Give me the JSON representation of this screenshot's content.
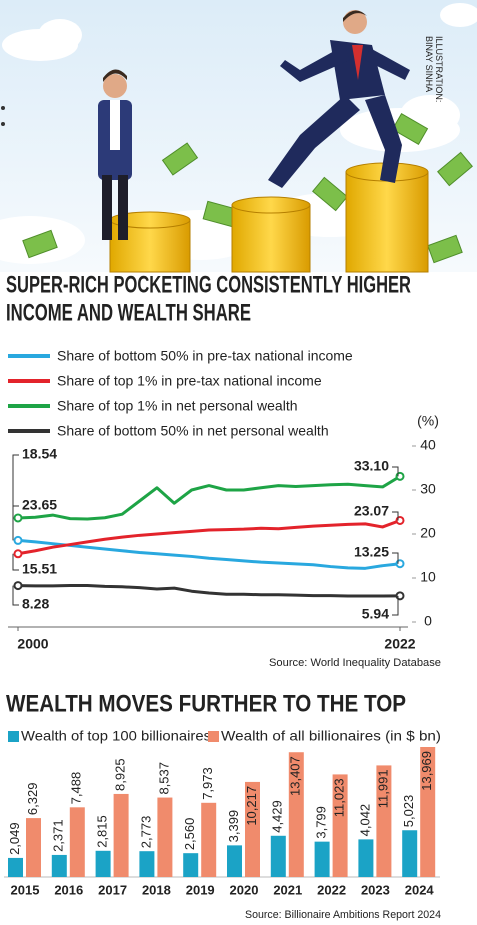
{
  "header": {
    "credit": [
      "ILLUSTRATION:",
      "BINAY SINHA"
    ]
  },
  "chart_data": [
    {
      "type": "line",
      "title": [
        "SUPER-RICH POCKETING CONSISTENTLY HIGHER",
        "INCOME AND WEALTH SHARE"
      ],
      "y_label": "(%)",
      "x": [
        2000,
        2001,
        2002,
        2003,
        2004,
        2005,
        2006,
        2007,
        2008,
        2009,
        2010,
        2011,
        2012,
        2013,
        2014,
        2015,
        2016,
        2017,
        2018,
        2019,
        2020,
        2021,
        2022
      ],
      "xlim": [
        2000,
        2022
      ],
      "xticks": [
        2000,
        2022
      ],
      "ylim": [
        0,
        40
      ],
      "yticks": [
        0,
        10,
        20,
        30,
        40
      ],
      "series": [
        {
          "name": "Share of bottom 50% in pre-tax national income",
          "color": "#29a8df",
          "values": [
            18.54,
            18.2,
            17.8,
            17.4,
            17.0,
            16.6,
            16.2,
            15.8,
            15.5,
            15.2,
            14.9,
            14.5,
            14.2,
            13.9,
            13.6,
            13.4,
            13.2,
            13.0,
            12.6,
            12.3,
            12.2,
            12.8,
            13.25
          ],
          "value_labels": [
            "18.54",
            null,
            null,
            null,
            null,
            null,
            null,
            null,
            null,
            null,
            null,
            null,
            null,
            null,
            null,
            null,
            null,
            null,
            null,
            null,
            null,
            null,
            "13.25"
          ]
        },
        {
          "name": "Share of top 1% in pre-tax national income",
          "color": "#e3232b",
          "values": [
            15.51,
            16.2,
            17.0,
            17.6,
            18.2,
            18.8,
            19.3,
            19.7,
            20.0,
            20.3,
            20.6,
            20.9,
            21.0,
            21.1,
            21.3,
            21.2,
            21.5,
            21.8,
            22.0,
            22.2,
            22.3,
            21.6,
            23.07
          ],
          "value_labels": [
            "15.51",
            null,
            null,
            null,
            null,
            null,
            null,
            null,
            null,
            null,
            null,
            null,
            null,
            null,
            null,
            null,
            null,
            null,
            null,
            null,
            null,
            null,
            "23.07"
          ]
        },
        {
          "name": "Share of top 1% in net personal wealth",
          "color": "#1ea446",
          "values": [
            23.65,
            23.8,
            24.3,
            23.5,
            23.4,
            23.7,
            24.5,
            27.5,
            30.5,
            27.0,
            30.0,
            31.0,
            30.0,
            30.0,
            30.5,
            31.0,
            30.8,
            31.0,
            31.2,
            31.3,
            31.0,
            30.7,
            33.1
          ],
          "value_labels": [
            "23.65",
            null,
            null,
            null,
            null,
            null,
            null,
            null,
            null,
            null,
            null,
            null,
            null,
            null,
            null,
            null,
            null,
            null,
            null,
            null,
            null,
            null,
            "33.10"
          ]
        },
        {
          "name": "Share of bottom 50% in net personal wealth",
          "color": "#333333",
          "values": [
            8.28,
            8.2,
            8.2,
            8.3,
            8.3,
            8.1,
            8.0,
            7.8,
            7.5,
            7.7,
            7.0,
            6.6,
            6.3,
            6.3,
            6.2,
            6.2,
            6.1,
            6.0,
            6.0,
            5.9,
            5.9,
            5.9,
            5.94
          ],
          "value_labels": [
            "8.28",
            null,
            null,
            null,
            null,
            null,
            null,
            null,
            null,
            null,
            null,
            null,
            null,
            null,
            null,
            null,
            null,
            null,
            null,
            null,
            null,
            null,
            "5.94"
          ]
        }
      ],
      "source": "Source: World Inequality Database"
    },
    {
      "type": "bar",
      "title": [
        "WEALTH MOVES FURTHER TO THE TOP"
      ],
      "categories": [
        "2015",
        "2016",
        "2017",
        "2018",
        "2019",
        "2020",
        "2021",
        "2022",
        "2023",
        "2024"
      ],
      "series": [
        {
          "name": "Wealth of top 100 billionaires",
          "color": "#1ba3c6",
          "values": [
            2049,
            2371,
            2815,
            2773,
            2560,
            3399,
            4429,
            3799,
            4042,
            5023
          ],
          "value_labels": [
            "2,049",
            "2,371",
            "2,815",
            "2,773",
            "2,560",
            "3,399",
            "4,429",
            "3,799",
            "4,042",
            "5,023"
          ]
        },
        {
          "name": "Wealth of all billionaires (in $ bn)",
          "color": "#f08b6c",
          "values": [
            6329,
            7488,
            8925,
            8537,
            7973,
            10217,
            13407,
            11023,
            11991,
            13969
          ],
          "value_labels": [
            "6,329",
            "7,488",
            "8,925",
            "8,537",
            "7,973",
            "10,217",
            "13,407",
            "11,023",
            "11,991",
            "13,969"
          ]
        }
      ],
      "source": "Source: Billionaire Ambitions Report 2024"
    }
  ]
}
